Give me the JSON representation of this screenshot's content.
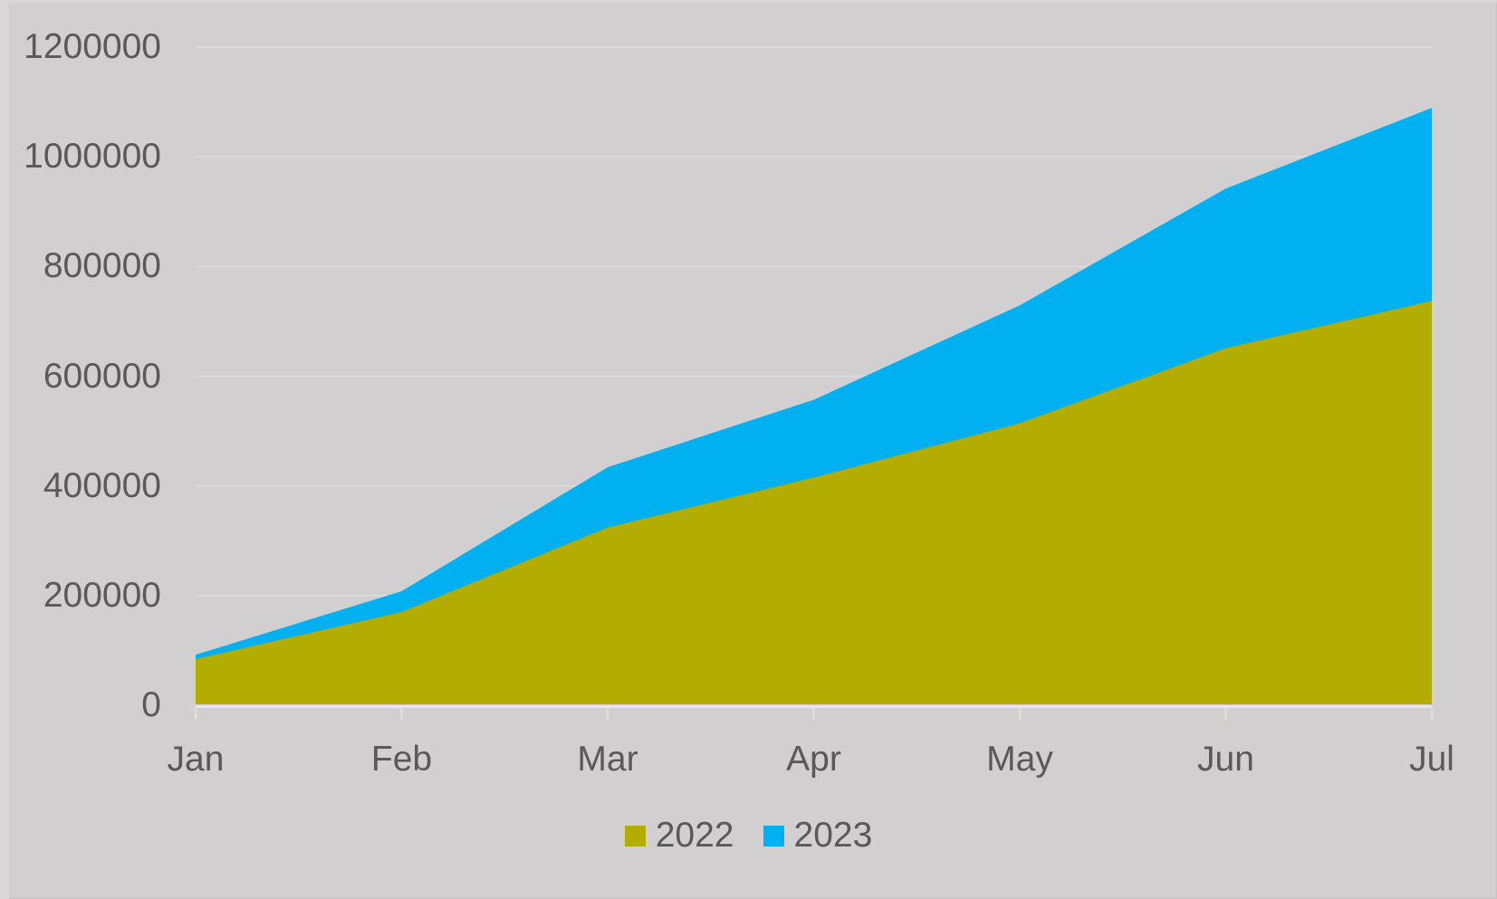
{
  "chart_data": {
    "type": "area",
    "stacked": true,
    "title": "",
    "xlabel": "",
    "ylabel": "",
    "categories": [
      "Jan",
      "Feb",
      "Mar",
      "Apr",
      "May",
      "Jun",
      "Jul"
    ],
    "series": [
      {
        "name": "2022",
        "color": "#b2ad00",
        "values": [
          84000,
          170000,
          324000,
          415000,
          514000,
          651000,
          737000
        ]
      },
      {
        "name": "2023",
        "color": "#00b0f0",
        "values": [
          8000,
          38000,
          110000,
          142000,
          215000,
          291000,
          352000
        ]
      }
    ],
    "stacked_totals": [
      92000,
      208000,
      434000,
      557000,
      729000,
      942000,
      1089000
    ],
    "ylim": [
      0,
      1200000
    ],
    "y_tick_step": 200000,
    "y_tick_labels": [
      "0",
      "200000",
      "400000",
      "600000",
      "800000",
      "1000000",
      "1200000"
    ],
    "grid": true,
    "legend_position": "bottom"
  },
  "colors": {
    "background": "#d1cfd0",
    "gridline": "#dcdada",
    "axis_line": "#e9e7e4",
    "tick_mark": "#dfddda",
    "label_text": "#595959",
    "series_2022": "#b2ad00",
    "series_2023": "#00b0f0"
  }
}
